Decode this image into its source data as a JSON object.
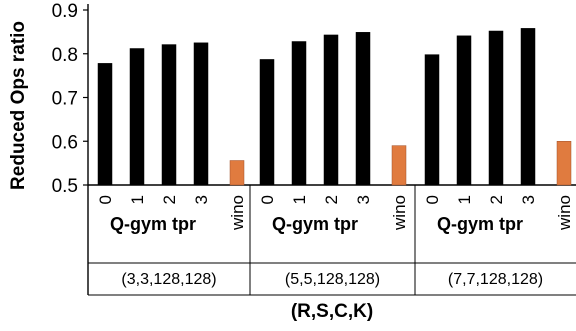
{
  "chart_data": {
    "type": "bar",
    "ylabel": "Reduced Ops ratio",
    "xlabel": "(R,S,C,K)",
    "ylim": [
      0.5,
      0.9
    ],
    "yticks": [
      "0.5",
      "0.6",
      "0.7",
      "0.8",
      "0.9"
    ],
    "grid": false,
    "colors": {
      "qgym": "#000000",
      "wino": "#e07b3f"
    },
    "groups": [
      {
        "param": "(3,3,128,128)",
        "method_label": "Q-gym tpr",
        "bars": [
          {
            "label": "0",
            "value": 0.778,
            "kind": "qgym"
          },
          {
            "label": "1",
            "value": 0.812,
            "kind": "qgym"
          },
          {
            "label": "2",
            "value": 0.821,
            "kind": "qgym"
          },
          {
            "label": "3",
            "value": 0.825,
            "kind": "qgym"
          },
          {
            "label": "wino",
            "value": 0.556,
            "kind": "wino"
          }
        ]
      },
      {
        "param": "(5,5,128,128)",
        "method_label": "Q-gym tpr",
        "bars": [
          {
            "label": "0",
            "value": 0.787,
            "kind": "qgym"
          },
          {
            "label": "1",
            "value": 0.828,
            "kind": "qgym"
          },
          {
            "label": "2",
            "value": 0.843,
            "kind": "qgym"
          },
          {
            "label": "3",
            "value": 0.849,
            "kind": "qgym"
          },
          {
            "label": "wino",
            "value": 0.59,
            "kind": "wino"
          }
        ]
      },
      {
        "param": "(7,7,128,128)",
        "method_label": "Q-gym tpr",
        "bars": [
          {
            "label": "0",
            "value": 0.798,
            "kind": "qgym"
          },
          {
            "label": "1",
            "value": 0.841,
            "kind": "qgym"
          },
          {
            "label": "2",
            "value": 0.852,
            "kind": "qgym"
          },
          {
            "label": "3",
            "value": 0.858,
            "kind": "qgym"
          },
          {
            "label": "wino",
            "value": 0.6,
            "kind": "wino"
          }
        ]
      }
    ]
  }
}
